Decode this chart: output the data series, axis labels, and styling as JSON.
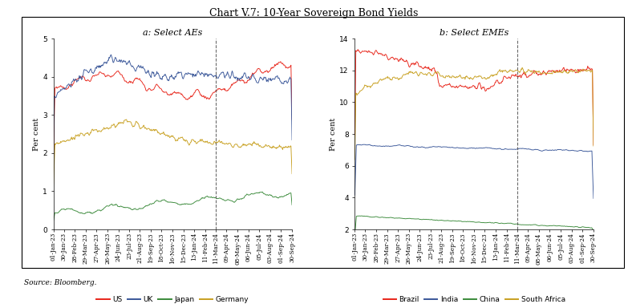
{
  "title": "Chart V.7: 10-Year Sovereign Bond Yields",
  "subtitle_left": "a: Select AEs",
  "subtitle_right": "b: Select EMEs",
  "source": "Source: Bloomberg.",
  "ylabel": "Per cent",
  "colors": {
    "US": "#e8251a",
    "UK": "#3a5799",
    "Japan": "#3a8a3a",
    "Germany": "#c8a020",
    "Brazil": "#e8251a",
    "India": "#3a5799",
    "China": "#3a8a3a",
    "South_Africa": "#c8a020"
  },
  "dates_a": [
    "01-Jan-23",
    "30-Jan-23",
    "28-Feb-23",
    "29-Mar-23",
    "27-Apr-23",
    "26-May-23",
    "24-Jun-23",
    "23-Jul-23",
    "21-Aug-23",
    "19-Sep-23",
    "18-Oct-23",
    "16-Nov-23",
    "15-Dec-23",
    "13-Jan-24",
    "11-Feb-24",
    "11-Mar-24",
    "09-Apr-24",
    "08-May-24",
    "06-Jun-24",
    "05-Jul-24",
    "03-Aug-24",
    "01-Sep-24",
    "30-Sep-24"
  ],
  "dates_b": [
    "01-Jan-23",
    "30-Jan-23",
    "28-Feb-23",
    "29-Mar-23",
    "27-Apr-23",
    "26-May-23",
    "24-Jun-23",
    "23-Jul-23",
    "21-Aug-23",
    "19-Sep-23",
    "18-Oct-23",
    "16-Nov-23",
    "15-Dec-23",
    "13-Jan-24",
    "11-Feb-24",
    "11-Mar-24",
    "09-Apr-24",
    "08-May-24",
    "06-Jun-24",
    "05-Jul-24",
    "03-Aug-24",
    "01-Sep-24",
    "30-Sep-24"
  ],
  "n_points": 460,
  "dashed_tick_index": 15
}
